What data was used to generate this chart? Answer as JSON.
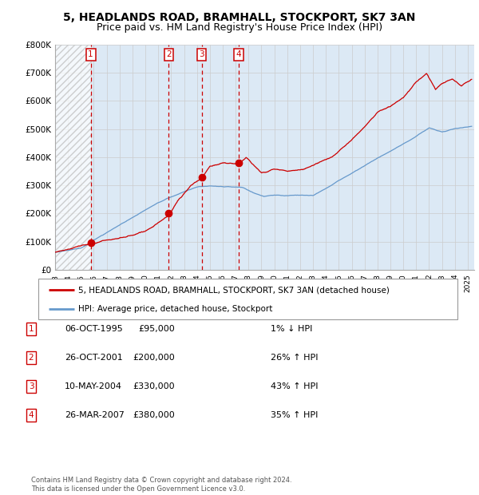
{
  "title_line1": "5, HEADLANDS ROAD, BRAMHALL, STOCKPORT, SK7 3AN",
  "title_line2": "Price paid vs. HM Land Registry's House Price Index (HPI)",
  "ylim": [
    0,
    800000
  ],
  "yticks": [
    0,
    100000,
    200000,
    300000,
    400000,
    500000,
    600000,
    700000,
    800000
  ],
  "ytick_labels": [
    "£0",
    "£100K",
    "£200K",
    "£300K",
    "£400K",
    "£500K",
    "£600K",
    "£700K",
    "£800K"
  ],
  "background_color": "#ffffff",
  "plot_bg_color": "#dce9f5",
  "hatch_region_end_year": 1995.8,
  "sale_dates": [
    1995.76,
    2001.82,
    2004.36,
    2007.24
  ],
  "sale_prices": [
    95000,
    200000,
    330000,
    380000
  ],
  "sale_labels": [
    "1",
    "2",
    "3",
    "4"
  ],
  "red_line_color": "#cc0000",
  "blue_line_color": "#6699cc",
  "dashed_line_color": "#cc0000",
  "grid_color": "#cccccc",
  "legend_entries": [
    "5, HEADLANDS ROAD, BRAMHALL, STOCKPORT, SK7 3AN (detached house)",
    "HPI: Average price, detached house, Stockport"
  ],
  "table_data": [
    [
      "1",
      "06-OCT-1995",
      "£95,000",
      "1% ↓ HPI"
    ],
    [
      "2",
      "26-OCT-2001",
      "£200,000",
      "26% ↑ HPI"
    ],
    [
      "3",
      "10-MAY-2004",
      "£330,000",
      "43% ↑ HPI"
    ],
    [
      "4",
      "26-MAR-2007",
      "£380,000",
      "35% ↑ HPI"
    ]
  ],
  "footnote": "Contains HM Land Registry data © Crown copyright and database right 2024.\nThis data is licensed under the Open Government Licence v3.0.",
  "title_fontsize": 10,
  "subtitle_fontsize": 9,
  "xlim_start": 1993,
  "xlim_end": 2025.5
}
